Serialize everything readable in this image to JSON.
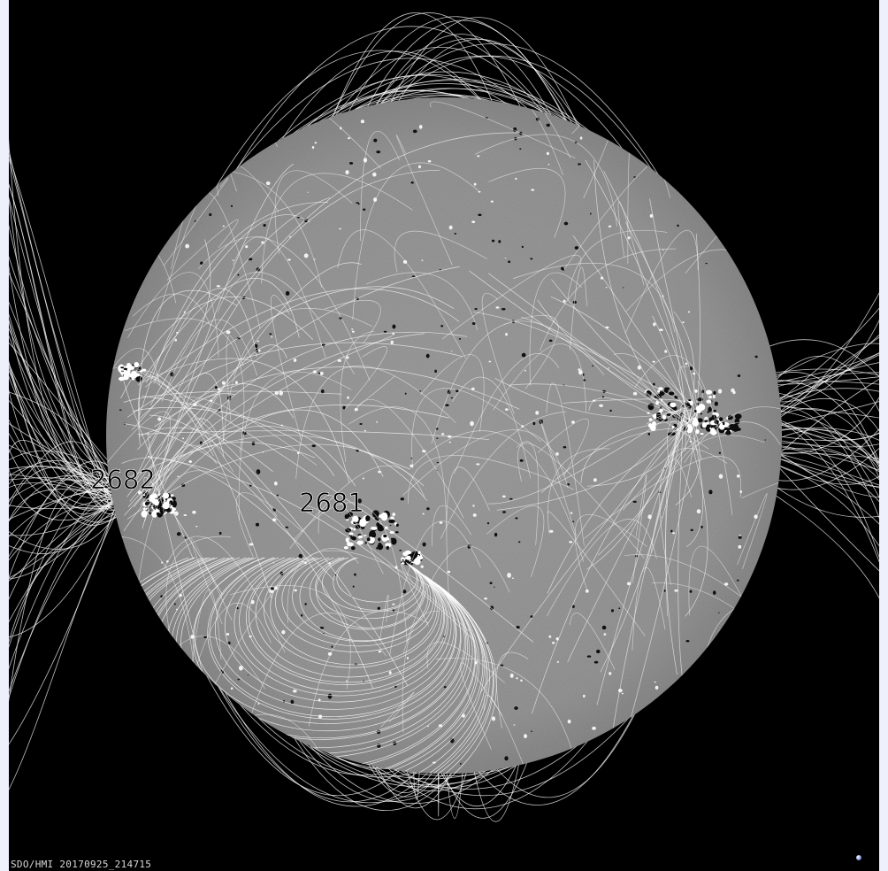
{
  "image": {
    "caption": "SDO/HMI 20170925_214715",
    "regions": [
      {
        "id": "r2682",
        "label": "2682"
      },
      {
        "id": "r2681",
        "label": "2681"
      }
    ],
    "colors": {
      "background": "#000000",
      "disk": "#8c8c8c",
      "field_lines": "#ffffff",
      "outer_border": "#eef0fb"
    }
  }
}
